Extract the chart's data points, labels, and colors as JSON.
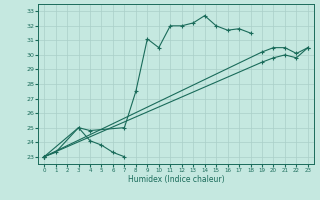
{
  "xlabel": "Humidex (Indice chaleur)",
  "xlim": [
    -0.5,
    23.5
  ],
  "ylim": [
    22.5,
    33.5
  ],
  "xticks": [
    0,
    1,
    2,
    3,
    4,
    5,
    6,
    7,
    8,
    9,
    10,
    11,
    12,
    13,
    14,
    15,
    16,
    17,
    18,
    19,
    20,
    21,
    22,
    23
  ],
  "yticks": [
    23,
    24,
    25,
    26,
    27,
    28,
    29,
    30,
    31,
    32,
    33
  ],
  "bg_color": "#c5e8e0",
  "line_color": "#1a6b5a",
  "grid_color": "#aacfc8",
  "series": [
    {
      "x": [
        0,
        1,
        3,
        4,
        5,
        6,
        7
      ],
      "y": [
        23.0,
        23.3,
        25.0,
        24.1,
        23.8,
        23.3,
        23.0
      ]
    },
    {
      "x": [
        0,
        3,
        4,
        7,
        8,
        9,
        10,
        11,
        12,
        13,
        14,
        15,
        16,
        17,
        18
      ],
      "y": [
        23.0,
        25.0,
        24.8,
        25.0,
        27.5,
        31.1,
        30.5,
        32.0,
        32.0,
        32.2,
        32.7,
        32.0,
        31.7,
        31.8,
        31.5
      ]
    },
    {
      "x": [
        0,
        19,
        20,
        21,
        22,
        23
      ],
      "y": [
        23.0,
        30.2,
        30.5,
        30.5,
        30.1,
        30.5
      ]
    },
    {
      "x": [
        0,
        19,
        20,
        21,
        22,
        23
      ],
      "y": [
        23.0,
        29.5,
        29.8,
        30.0,
        29.8,
        30.5
      ]
    }
  ]
}
